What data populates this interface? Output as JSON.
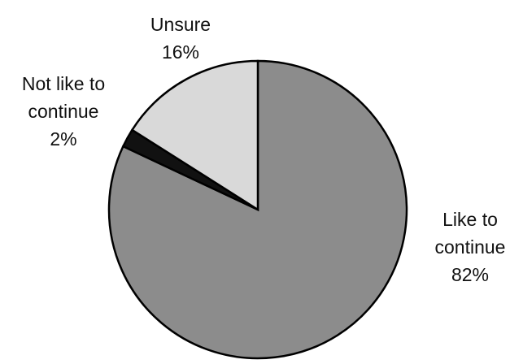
{
  "chart_data": {
    "type": "pie",
    "categories": [
      "Like to continue",
      "Not like to continue",
      "Unsure"
    ],
    "values": [
      82,
      2,
      16
    ],
    "value_labels": [
      "82%",
      "2%",
      "16%"
    ],
    "colors": [
      "#8c8c8c",
      "#111111",
      "#d9d9d9"
    ]
  }
}
